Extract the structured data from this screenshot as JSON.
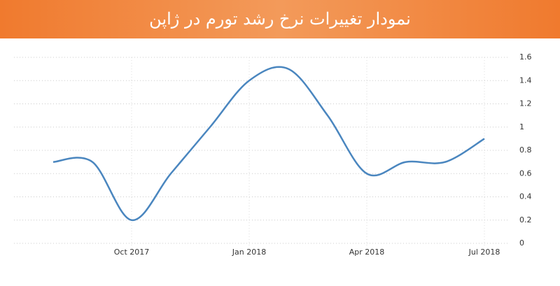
{
  "chart_data": {
    "type": "line",
    "title": "نمودار تغییرات نرخ رشد تورم در ژاپن",
    "categories": [
      null,
      null,
      "Oct 2017",
      null,
      null,
      "Jan 2018",
      null,
      null,
      "Apr 2018",
      null,
      null,
      "Jul 2018"
    ],
    "values": [
      0.7,
      0.7,
      0.2,
      0.6,
      1.0,
      1.4,
      1.5,
      1.1,
      0.6,
      0.7,
      0.7,
      0.9
    ],
    "color": "#4a86bf",
    "ylim": [
      0,
      1.6
    ],
    "yticks": [
      0,
      0.2,
      0.4,
      0.6,
      0.8,
      1,
      1.2,
      1.4,
      1.6
    ],
    "grid": true
  }
}
